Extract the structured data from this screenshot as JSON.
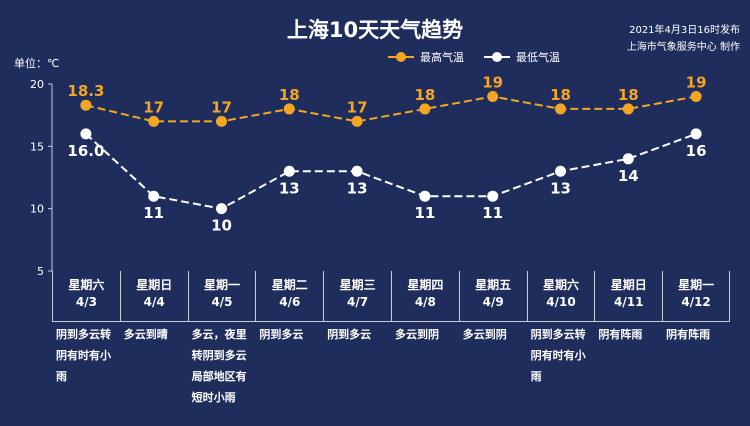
{
  "title": "上海10天天气趋势",
  "release": {
    "line1": "2021年4月3日16时发布",
    "line2": "上海市气象服务中心 制作"
  },
  "unit": "单位：℃",
  "legend": {
    "high": "最高气温",
    "low": "最低气温"
  },
  "colors": {
    "background": "#1f2d5c",
    "high": "#f3a623",
    "low": "#ffffff"
  },
  "chart_data": {
    "type": "line",
    "x": [
      "4/3",
      "4/4",
      "4/5",
      "4/6",
      "4/7",
      "4/8",
      "4/9",
      "4/10",
      "4/11",
      "4/12"
    ],
    "series": [
      {
        "name": "最高气温",
        "values": [
          18.3,
          17,
          17,
          18,
          17,
          18,
          19,
          18,
          18,
          19
        ],
        "labels": [
          "18.3",
          "17",
          "17",
          "18",
          "17",
          "18",
          "19",
          "18",
          "18",
          "19"
        ],
        "style": "dashed"
      },
      {
        "name": "最低气温",
        "values": [
          16.0,
          11,
          10,
          13,
          13,
          11,
          11,
          13,
          14,
          16
        ],
        "labels": [
          "16.0",
          "11",
          "10",
          "13",
          "13",
          "11",
          "11",
          "13",
          "14",
          "16"
        ],
        "style": "dashed"
      }
    ],
    "ylim": [
      5,
      20
    ],
    "yticks": [
      5,
      10,
      15,
      20
    ],
    "grid": false,
    "legend_position": "top"
  },
  "days": [
    {
      "weekday": "星期六",
      "date": "4/3",
      "weather": "阴到多云转阴有时有小雨"
    },
    {
      "weekday": "星期日",
      "date": "4/4",
      "weather": "多云到晴"
    },
    {
      "weekday": "星期一",
      "date": "4/5",
      "weather": "多云，夜里转阴到多云局部地区有短时小雨"
    },
    {
      "weekday": "星期二",
      "date": "4/6",
      "weather": "阴到多云"
    },
    {
      "weekday": "星期三",
      "date": "4/7",
      "weather": "阴到多云"
    },
    {
      "weekday": "星期四",
      "date": "4/8",
      "weather": "多云到阴"
    },
    {
      "weekday": "星期五",
      "date": "4/9",
      "weather": "多云到阴"
    },
    {
      "weekday": "星期六",
      "date": "4/10",
      "weather": "阴到多云转阴有时有小雨"
    },
    {
      "weekday": "星期日",
      "date": "4/11",
      "weather": "阴有阵雨"
    },
    {
      "weekday": "星期一",
      "date": "4/12",
      "weather": "阴有阵雨"
    }
  ]
}
